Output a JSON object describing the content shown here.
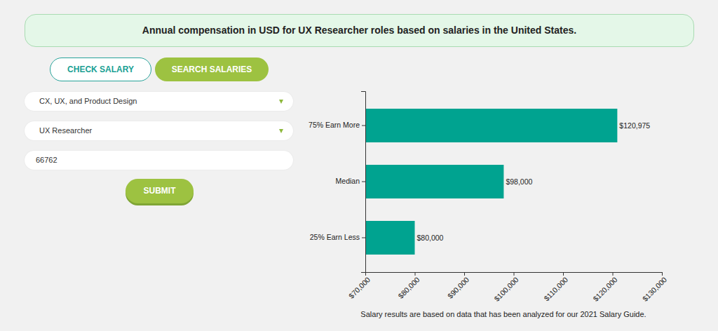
{
  "header": {
    "title": "Annual compensation in USD for UX Researcher roles based on salaries in the United States."
  },
  "tabs": [
    "CHECK SALARY",
    "SEARCH SALARIES"
  ],
  "form": {
    "category": "CX, UX, and Product Design",
    "role": "UX Researcher",
    "zip": "66762",
    "submit": "SUBMIT"
  },
  "chart_data": {
    "type": "bar",
    "orientation": "horizontal",
    "categories": [
      "75% Earn More",
      "Median",
      "25% Earn Less"
    ],
    "values": [
      120975,
      98000,
      80000
    ],
    "value_labels": [
      "$120,975",
      "$98,000",
      "$80,000"
    ],
    "data_labels": true,
    "color": "#00a390",
    "xlim": [
      70000,
      130000
    ],
    "xticks": [
      {
        "value": 70000,
        "label": "$70,000"
      },
      {
        "value": 80000,
        "label": "$80,000"
      },
      {
        "value": 90000,
        "label": "$90,000"
      },
      {
        "value": 100000,
        "label": "$100,000"
      },
      {
        "value": 110000,
        "label": "$110,000"
      },
      {
        "value": 120000,
        "label": "$120,000"
      },
      {
        "value": 130000,
        "label": "$130,000"
      }
    ]
  },
  "footer": {
    "note": "Salary results are based on data that has been analyzed for our 2021 Salary Guide."
  }
}
